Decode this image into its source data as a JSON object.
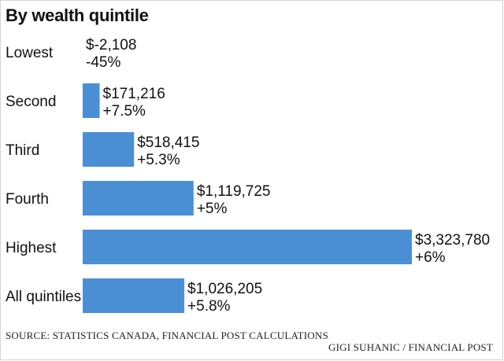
{
  "chart_data": {
    "type": "bar",
    "orientation": "horizontal",
    "title": "By wealth quintile",
    "categories": [
      "Lowest",
      "Second",
      "Third",
      "Fourth",
      "Highest",
      "All quintiles"
    ],
    "values": [
      -2108,
      171216,
      518415,
      1119725,
      3323780,
      1026205
    ],
    "value_labels": [
      "$-2,108",
      "$171,216",
      "$518,415",
      "$1,119,725",
      "$3,323,780",
      "$1,026,205"
    ],
    "change_labels": [
      "-45%",
      "+7.5%",
      "+5.3%",
      "+5%",
      "+6%",
      "+5.8%"
    ],
    "bar_color": "#4a8fd4",
    "xlim": [
      0,
      3323780
    ],
    "grid": false,
    "legend": "none"
  },
  "footer": {
    "source": "SOURCE: STATISTICS CANADA, FINANCIAL POST CALCULATIONS",
    "credit": "GIGI SUHANIC / FINANCIAL POST"
  }
}
